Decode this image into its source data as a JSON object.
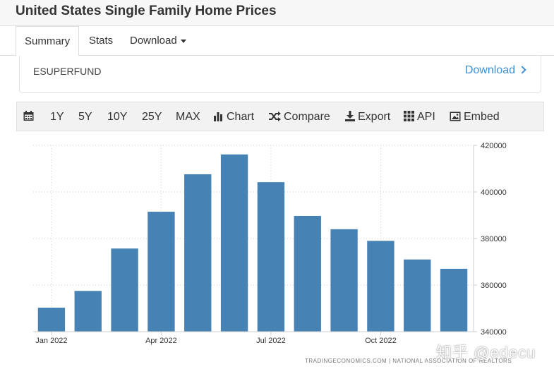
{
  "page": {
    "title": "United States Single Family Home Prices"
  },
  "tabs": [
    {
      "label": "Summary",
      "active": true
    },
    {
      "label": "Stats",
      "active": false
    },
    {
      "label": "Download",
      "active": false
    }
  ],
  "fund": {
    "name": "ESUPERFUND",
    "download_label": "Download"
  },
  "toolbar": {
    "calendar_icon": "calendar-icon",
    "ranges": [
      "1Y",
      "5Y",
      "10Y",
      "25Y",
      "MAX"
    ],
    "chart_label": "Chart",
    "compare_label": "Compare",
    "export_label": "Export",
    "api_label": "API",
    "embed_label": "Embed"
  },
  "chart_data": {
    "type": "bar",
    "color": "#4682b4",
    "x_tick_labels": [
      "Jan 2022",
      "Apr 2022",
      "Jul 2022",
      "Oct 2022"
    ],
    "x_tick_indices": [
      0,
      3,
      6,
      9
    ],
    "categories": [
      "Jan 2022",
      "Feb 2022",
      "Mar 2022",
      "Apr 2022",
      "May 2022",
      "Jun 2022",
      "Jul 2022",
      "Aug 2022",
      "Sep 2022",
      "Oct 2022",
      "Nov 2022",
      "Dec 2022"
    ],
    "values": [
      350300,
      357500,
      375700,
      391500,
      407600,
      416100,
      404200,
      389700,
      384000,
      379000,
      371000,
      367000
    ],
    "ylim": [
      340000,
      420000
    ],
    "y_ticks": [
      340000,
      360000,
      380000,
      400000,
      420000
    ],
    "y_tick_labels": [
      "340000",
      "360000",
      "380000",
      "400000",
      "420000"
    ],
    "y_axis_side": "right",
    "grid": true
  },
  "source_text": "TRADINGECONOMICS.COM  |  NATIONAL ASSOCIATION OF REALTORS",
  "watermark": "知乎 @edecu"
}
